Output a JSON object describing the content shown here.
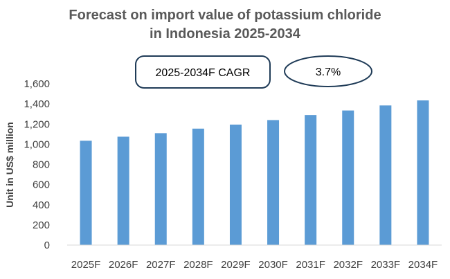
{
  "chart_data": {
    "type": "bar",
    "title_line1": "Forecast on import value of potassium chloride",
    "title_line2": "in Indonesia 2025-2034",
    "categories": [
      "2025F",
      "2026F",
      "2027F",
      "2028F",
      "2029F",
      "2030F",
      "2031F",
      "2032F",
      "2033F",
      "2034F"
    ],
    "values": [
      1035,
      1075,
      1110,
      1155,
      1195,
      1240,
      1290,
      1335,
      1385,
      1435
    ],
    "xlabel": "",
    "ylabel": "Unit in US$ million",
    "ylim": [
      0,
      1600
    ],
    "yticks": [
      "0",
      "200",
      "400",
      "600",
      "800",
      "1,000",
      "1,200",
      "1,400",
      "1,600"
    ],
    "bar_color": "#5b9bd5",
    "annotation": {
      "label": "2025-2034F CAGR",
      "value": "3.7%",
      "border_color": "#1f3b57"
    }
  }
}
